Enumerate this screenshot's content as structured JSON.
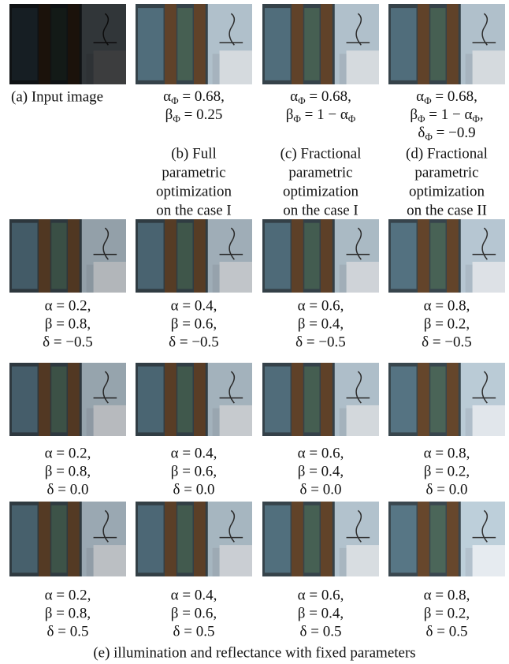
{
  "top_row": [
    {
      "caption_lines": [
        "(a) Input image"
      ]
    },
    {
      "equation_lines": [
        [
          {
            "t": "α"
          },
          {
            "sub": "Φ"
          },
          {
            "t": " = 0.68,"
          }
        ],
        [
          {
            "t": "β"
          },
          {
            "sub": "Φ"
          },
          {
            "t": " = 0.25"
          }
        ]
      ],
      "caption_lines": [
        "(b) Full",
        "parametric",
        "optimization",
        "on the case I"
      ]
    },
    {
      "equation_lines": [
        [
          {
            "t": "α"
          },
          {
            "sub": "Φ"
          },
          {
            "t": " = 0.68,"
          }
        ],
        [
          {
            "t": "β"
          },
          {
            "sub": "Φ"
          },
          {
            "t": " = 1 − α"
          },
          {
            "sub": "Φ"
          }
        ]
      ],
      "caption_lines": [
        "(c) Fractional",
        "parametric",
        "optimization",
        "on the case I"
      ]
    },
    {
      "equation_lines": [
        [
          {
            "t": "α"
          },
          {
            "sub": "Φ"
          },
          {
            "t": " = 0.68,"
          }
        ],
        [
          {
            "t": "β"
          },
          {
            "sub": "Φ"
          },
          {
            "t": " = 1 − α"
          },
          {
            "sub": "Φ"
          },
          {
            "t": ","
          }
        ],
        [
          {
            "t": "δ"
          },
          {
            "sub": "Φ"
          },
          {
            "t": " = −0.9"
          }
        ]
      ],
      "caption_lines": [
        "(d) Fractional",
        "parametric",
        "optimization",
        "on the case II"
      ]
    }
  ],
  "grid_rows": [
    [
      [
        "α = 0.2,",
        "β = 0.8,",
        "δ = −0.5"
      ],
      [
        "α = 0.4,",
        "β = 0.6,",
        "δ = −0.5"
      ],
      [
        "α = 0.6,",
        "β = 0.4,",
        "δ = −0.5"
      ],
      [
        "α = 0.8,",
        "β = 0.2,",
        "δ = −0.5"
      ]
    ],
    [
      [
        "α = 0.2,",
        "β = 0.8,",
        "δ = 0.0"
      ],
      [
        "α = 0.4,",
        "β = 0.6,",
        "δ = 0.0"
      ],
      [
        "α = 0.6,",
        "β = 0.4,",
        "δ = 0.0"
      ],
      [
        "α = 0.8,",
        "β = 0.2,",
        "δ = 0.0"
      ]
    ],
    [
      [
        "α = 0.2,",
        "β = 0.8,",
        "δ = 0.5"
      ],
      [
        "α = 0.4,",
        "β = 0.6,",
        "δ = 0.5"
      ],
      [
        "α = 0.6,",
        "β = 0.4,",
        "δ = 0.5"
      ],
      [
        "α = 0.8,",
        "β = 0.2,",
        "δ = 0.5"
      ]
    ]
  ],
  "caption": "(e) illumination and reflectance with fixed parameters"
}
